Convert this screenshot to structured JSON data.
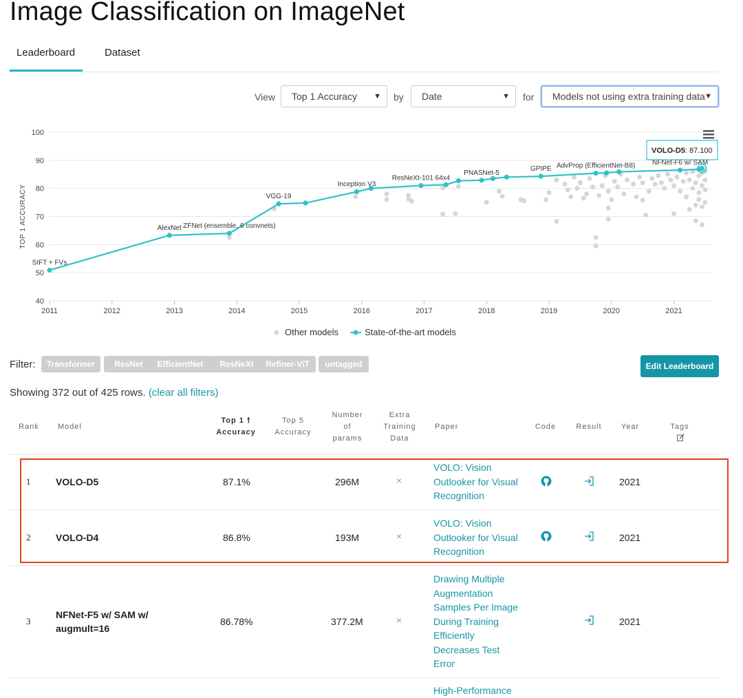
{
  "page_title": "Image Classification on ImageNet",
  "tabs": [
    {
      "label": "Leaderboard",
      "active": true
    },
    {
      "label": "Dataset",
      "active": false
    }
  ],
  "controls": {
    "view_label": "View",
    "view_value": "Top 1 Accuracy",
    "by_label": "by",
    "by_value": "Date",
    "for_label": "for",
    "for_value": "Models not using extra training data"
  },
  "chart_data": {
    "type": "scatter",
    "ylabel": "TOP 1 ACCURACY",
    "xlabel": "",
    "ylim": [
      40,
      100
    ],
    "xlim": [
      2011,
      2021.6
    ],
    "yticks": [
      40,
      50,
      60,
      70,
      80,
      90,
      100
    ],
    "xticks": [
      "2011",
      "2012",
      "2013",
      "2014",
      "2015",
      "2016",
      "2017",
      "2018",
      "2019",
      "2020",
      "2021"
    ],
    "grid": true,
    "legend": [
      "Other models",
      "State-of-the-art models"
    ],
    "legend_position": "bottom",
    "sota_color": "#2fc2c8",
    "other_color": "#d6d6d6",
    "tooltip": {
      "model": "VOLO-D5",
      "value": "87.100"
    },
    "sota_series": [
      {
        "x": 2011.0,
        "y": 50.9,
        "label": "SIFT + FVs"
      },
      {
        "x": 2012.92,
        "y": 63.3,
        "label": "AlexNet"
      },
      {
        "x": 2013.88,
        "y": 64.0,
        "label": "ZFNet (ensemble, 6 convnets)"
      },
      {
        "x": 2014.67,
        "y": 74.5,
        "label": "VGG-19"
      },
      {
        "x": 2015.1,
        "y": 74.8,
        "label": ""
      },
      {
        "x": 2015.92,
        "y": 78.8,
        "label": "Inception V3"
      },
      {
        "x": 2016.15,
        "y": 80.0,
        "label": ""
      },
      {
        "x": 2016.95,
        "y": 81.0,
        "label": "ResNeXt-101 64x4"
      },
      {
        "x": 2017.35,
        "y": 81.3,
        "label": ""
      },
      {
        "x": 2017.55,
        "y": 82.7,
        "label": ""
      },
      {
        "x": 2017.92,
        "y": 82.9,
        "label": "PNASNet-5"
      },
      {
        "x": 2018.1,
        "y": 83.5,
        "label": ""
      },
      {
        "x": 2018.32,
        "y": 84.0,
        "label": ""
      },
      {
        "x": 2018.87,
        "y": 84.3,
        "label": "GPIPE"
      },
      {
        "x": 2019.75,
        "y": 85.4,
        "label": "AdvProp (EfficientNet-B8)"
      },
      {
        "x": 2019.92,
        "y": 85.5,
        "label": ""
      },
      {
        "x": 2020.12,
        "y": 85.9,
        "label": ""
      },
      {
        "x": 2021.1,
        "y": 86.5,
        "label": "NFNet-F6 w/ SAM"
      },
      {
        "x": 2021.4,
        "y": 86.8,
        "label": ""
      },
      {
        "x": 2021.45,
        "y": 87.1,
        "label": ""
      }
    ],
    "other_points": [
      {
        "x": 2013.88,
        "y": 62.5
      },
      {
        "x": 2014.6,
        "y": 72.8
      },
      {
        "x": 2015.9,
        "y": 77.0
      },
      {
        "x": 2016.4,
        "y": 78.0
      },
      {
        "x": 2016.4,
        "y": 76.0
      },
      {
        "x": 2016.75,
        "y": 77.5
      },
      {
        "x": 2016.75,
        "y": 76.2
      },
      {
        "x": 2016.8,
        "y": 75.5
      },
      {
        "x": 2017.3,
        "y": 80.2
      },
      {
        "x": 2017.3,
        "y": 70.8
      },
      {
        "x": 2017.5,
        "y": 71.0
      },
      {
        "x": 2017.55,
        "y": 80.7
      },
      {
        "x": 2018.0,
        "y": 75.0
      },
      {
        "x": 2018.2,
        "y": 79.0
      },
      {
        "x": 2018.25,
        "y": 77.2
      },
      {
        "x": 2018.55,
        "y": 76.0
      },
      {
        "x": 2018.6,
        "y": 75.6
      },
      {
        "x": 2019.0,
        "y": 78.5
      },
      {
        "x": 2018.95,
        "y": 76.0
      },
      {
        "x": 2019.12,
        "y": 83.0
      },
      {
        "x": 2019.12,
        "y": 68.3
      },
      {
        "x": 2019.25,
        "y": 81.5
      },
      {
        "x": 2019.3,
        "y": 79.5
      },
      {
        "x": 2019.35,
        "y": 77.0
      },
      {
        "x": 2019.4,
        "y": 84.0
      },
      {
        "x": 2019.45,
        "y": 80.0
      },
      {
        "x": 2019.5,
        "y": 82.0
      },
      {
        "x": 2019.55,
        "y": 76.5
      },
      {
        "x": 2019.6,
        "y": 78.0
      },
      {
        "x": 2019.65,
        "y": 83.5
      },
      {
        "x": 2019.7,
        "y": 80.5
      },
      {
        "x": 2019.75,
        "y": 62.5
      },
      {
        "x": 2019.75,
        "y": 59.5
      },
      {
        "x": 2019.8,
        "y": 77.5
      },
      {
        "x": 2019.85,
        "y": 81.0
      },
      {
        "x": 2019.9,
        "y": 84.5
      },
      {
        "x": 2019.95,
        "y": 79.0
      },
      {
        "x": 2019.95,
        "y": 73.0
      },
      {
        "x": 2019.95,
        "y": 69.0
      },
      {
        "x": 2020.0,
        "y": 76.0
      },
      {
        "x": 2020.05,
        "y": 82.5
      },
      {
        "x": 2020.1,
        "y": 80.5
      },
      {
        "x": 2020.15,
        "y": 85.0
      },
      {
        "x": 2020.2,
        "y": 78.0
      },
      {
        "x": 2020.25,
        "y": 83.0
      },
      {
        "x": 2020.35,
        "y": 81.5
      },
      {
        "x": 2020.4,
        "y": 77.0
      },
      {
        "x": 2020.45,
        "y": 84.0
      },
      {
        "x": 2020.5,
        "y": 75.8
      },
      {
        "x": 2020.5,
        "y": 82.0
      },
      {
        "x": 2020.55,
        "y": 70.5
      },
      {
        "x": 2020.6,
        "y": 79.0
      },
      {
        "x": 2020.65,
        "y": 83.5
      },
      {
        "x": 2020.7,
        "y": 81.5
      },
      {
        "x": 2020.75,
        "y": 84.5
      },
      {
        "x": 2020.8,
        "y": 82.0
      },
      {
        "x": 2020.85,
        "y": 80.0
      },
      {
        "x": 2020.9,
        "y": 85.0
      },
      {
        "x": 2020.95,
        "y": 83.0
      },
      {
        "x": 2021.0,
        "y": 71.0
      },
      {
        "x": 2021.0,
        "y": 81.0
      },
      {
        "x": 2021.05,
        "y": 84.0
      },
      {
        "x": 2021.1,
        "y": 79.0
      },
      {
        "x": 2021.15,
        "y": 82.5
      },
      {
        "x": 2021.2,
        "y": 85.5
      },
      {
        "x": 2021.2,
        "y": 77.0
      },
      {
        "x": 2021.25,
        "y": 72.5
      },
      {
        "x": 2021.25,
        "y": 83.0
      },
      {
        "x": 2021.3,
        "y": 80.0
      },
      {
        "x": 2021.3,
        "y": 86.0
      },
      {
        "x": 2021.35,
        "y": 74.0
      },
      {
        "x": 2021.35,
        "y": 82.0
      },
      {
        "x": 2021.35,
        "y": 68.5
      },
      {
        "x": 2021.4,
        "y": 84.5
      },
      {
        "x": 2021.4,
        "y": 78.5
      },
      {
        "x": 2021.4,
        "y": 76.0
      },
      {
        "x": 2021.45,
        "y": 81.0
      },
      {
        "x": 2021.45,
        "y": 85.5
      },
      {
        "x": 2021.45,
        "y": 67.0
      },
      {
        "x": 2021.45,
        "y": 73.5
      },
      {
        "x": 2021.5,
        "y": 83.0
      },
      {
        "x": 2021.5,
        "y": 79.5
      },
      {
        "x": 2021.5,
        "y": 86.2
      },
      {
        "x": 2021.5,
        "y": 75.0
      }
    ]
  },
  "filter": {
    "label": "Filter:",
    "chips": [
      "Transformer",
      "ResNet",
      "EfficientNet",
      "ResNeXt",
      "Refiner-ViT",
      "untagged"
    ]
  },
  "edit_button": "Edit Leaderboard",
  "showing": {
    "text": "Showing 372 out of 425 rows.",
    "clear_link": "(clear all filters)"
  },
  "table": {
    "headers": {
      "rank": "Rank",
      "model": "Model",
      "top1_line1": "Top 1",
      "top1_line2": "Accuracy",
      "top5_line1": "Top 5",
      "top5_line2": "Accuracy",
      "params_line1": "Number",
      "params_line2": "of",
      "params_line3": "params",
      "extra_line1": "Extra",
      "extra_line2": "Training",
      "extra_line3": "Data",
      "paper": "Paper",
      "code": "Code",
      "result": "Result",
      "year": "Year",
      "tags": "Tags"
    },
    "rows": [
      {
        "rank": "1",
        "model": "VOLO-D5",
        "top1": "87.1%",
        "params": "296M",
        "extra": "×",
        "paper": "VOLO: Vision Outlooker for Visual Recognition",
        "year": "2021",
        "has_code": true
      },
      {
        "rank": "2",
        "model": "VOLO-D4",
        "top1": "86.8%",
        "params": "193M",
        "extra": "×",
        "paper": "VOLO: Vision Outlooker for Visual Recognition",
        "year": "2021",
        "has_code": true
      },
      {
        "rank": "3",
        "model": "NFNet-F5 w/ SAM w/ augmult=16",
        "top1": "86.78%",
        "params": "377.2M",
        "extra": "×",
        "paper": "Drawing Multiple Augmentation Samples Per Image During Training Efficiently Decreases Test Error",
        "year": "2021",
        "has_code": false
      },
      {
        "paper": "High-Performance"
      }
    ]
  }
}
